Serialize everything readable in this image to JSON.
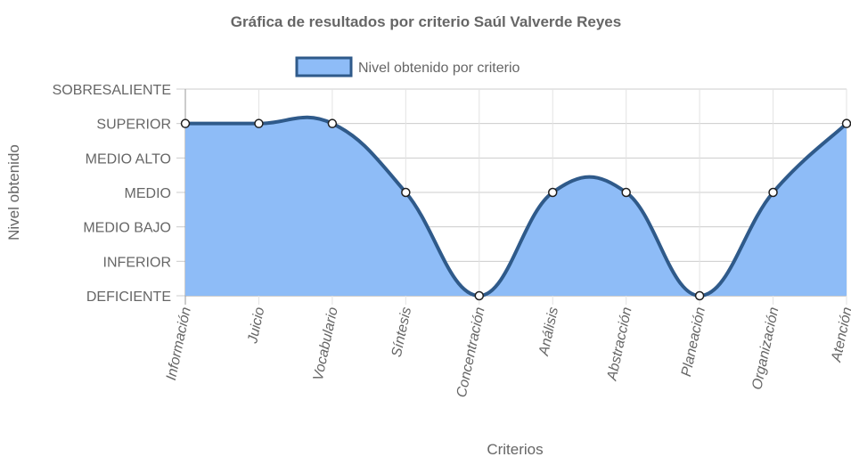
{
  "chart_data": {
    "type": "area",
    "title": "Gráfica de resultados por criterio Saúl Valverde Reyes",
    "xlabel": "Criterios",
    "ylabel": "Nivel obtenido",
    "categories": [
      "Información",
      "Juicio",
      "Vocabulario",
      "Síntesis",
      "Concentración",
      "Análisis",
      "Abstracción",
      "Planeación",
      "Organización",
      "Atención"
    ],
    "y_levels": [
      "DEFICIENTE",
      "INFERIOR",
      "MEDIO BAJO",
      "MEDIO",
      "MEDIO ALTO",
      "SUPERIOR",
      "SOBRESALIENTE"
    ],
    "ylim": [
      0,
      6
    ],
    "series": [
      {
        "name": "Nivel obtenido por criterio",
        "values": [
          5,
          5,
          5,
          3,
          0,
          3,
          3,
          0,
          3,
          5
        ],
        "levels": [
          "SUPERIOR",
          "SUPERIOR",
          "SUPERIOR",
          "MEDIO",
          "DEFICIENTE",
          "MEDIO",
          "MEDIO",
          "DEFICIENTE",
          "MEDIO",
          "SUPERIOR"
        ]
      }
    ],
    "legend_position": "top",
    "grid": true,
    "colors": {
      "fill": "#8ebcf7",
      "line": "#2f5a8a",
      "grid": "#d9d9d9",
      "text": "#666666"
    }
  }
}
